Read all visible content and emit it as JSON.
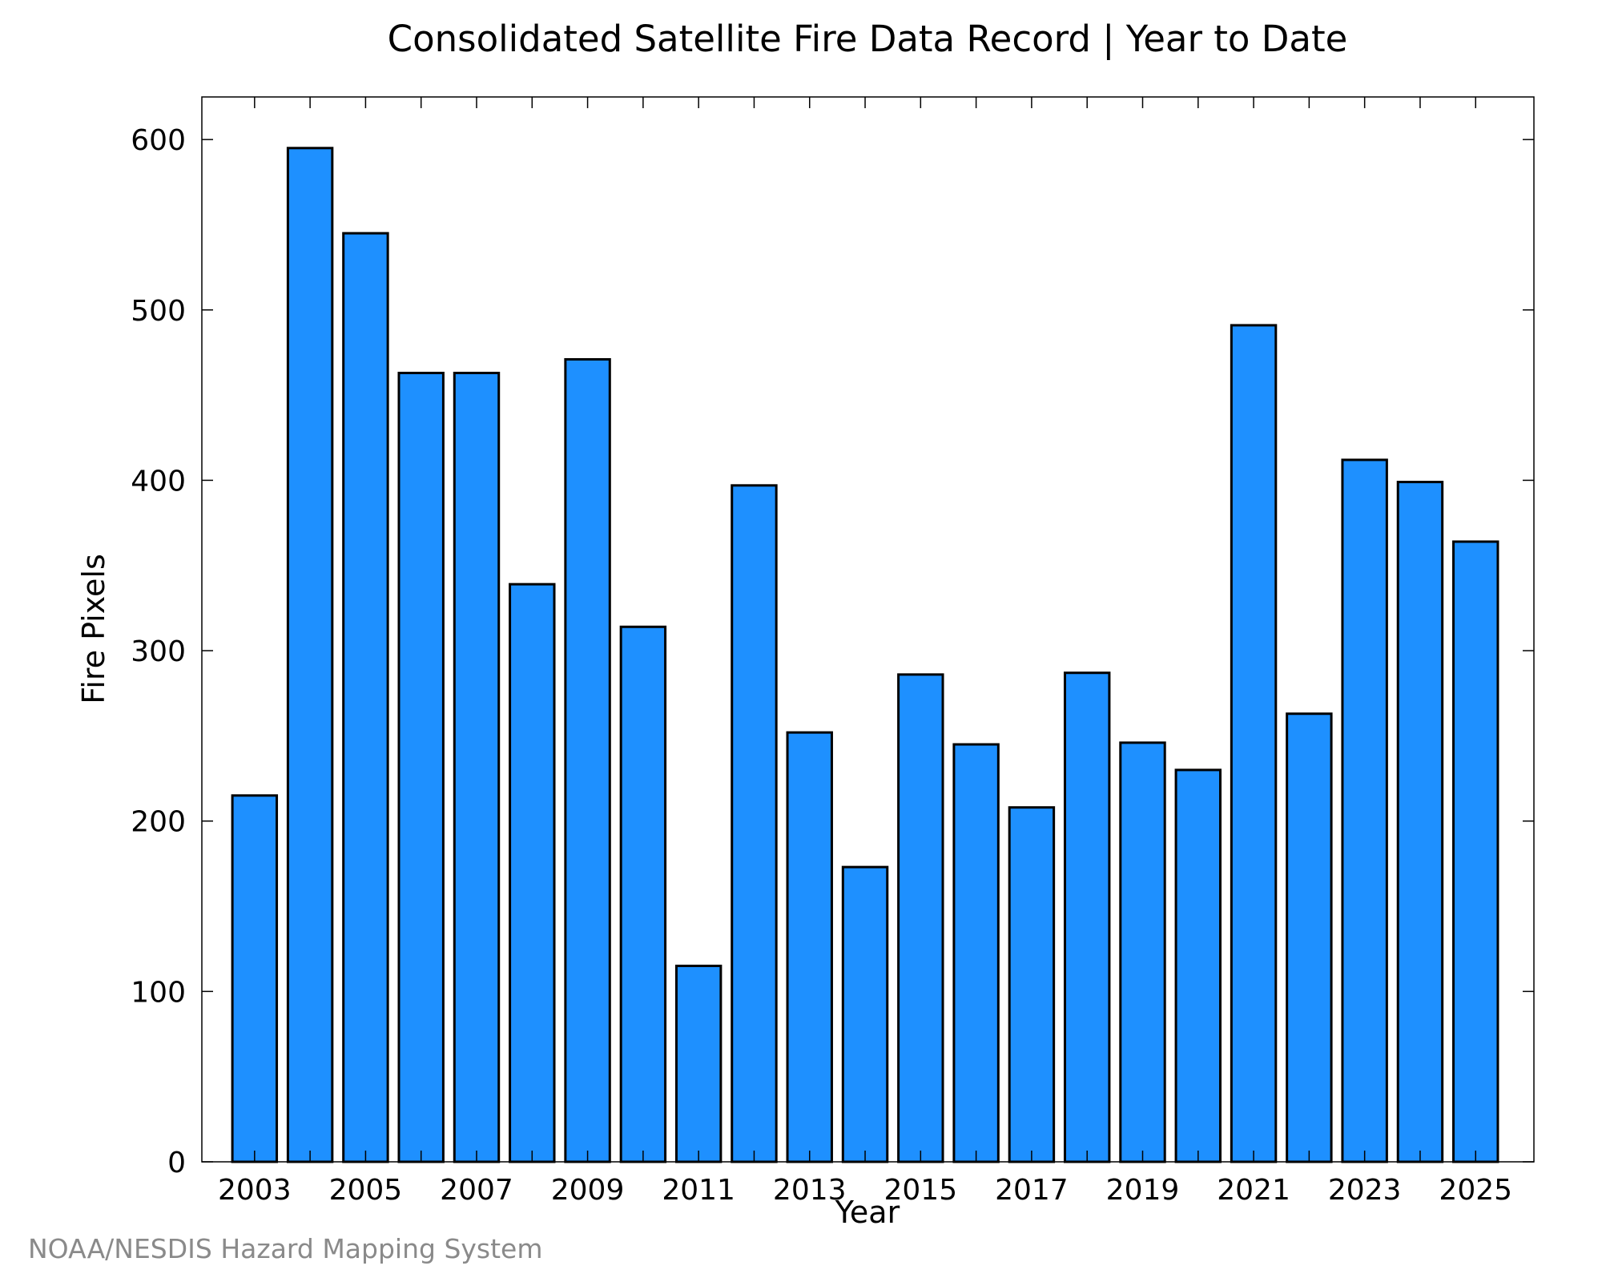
{
  "chart_data": {
    "type": "bar",
    "title": "Consolidated Satellite Fire Data Record | Year to Date",
    "xlabel": "Year",
    "ylabel": "Fire Pixels",
    "categories": [
      "2003",
      "2004",
      "2005",
      "2006",
      "2007",
      "2008",
      "2009",
      "2010",
      "2011",
      "2012",
      "2013",
      "2014",
      "2015",
      "2016",
      "2017",
      "2018",
      "2019",
      "2020",
      "2021",
      "2022",
      "2023",
      "2024",
      "2025"
    ],
    "x_tick_labels": [
      "2003",
      "2005",
      "2007",
      "2009",
      "2011",
      "2013",
      "2015",
      "2017",
      "2019",
      "2021",
      "2023",
      "2025"
    ],
    "values": [
      215,
      595,
      545,
      463,
      463,
      339,
      471,
      314,
      115,
      397,
      252,
      173,
      286,
      245,
      208,
      287,
      246,
      230,
      491,
      263,
      412,
      399,
      364
    ],
    "ylim": [
      0,
      625
    ],
    "y_ticks": [
      0,
      100,
      200,
      300,
      400,
      500,
      600
    ],
    "xlim": [
      2002.05,
      2026.05
    ],
    "bar_color": "#1E90FF",
    "grid": false,
    "legend": false
  },
  "footer": {
    "credit": "NOAA/NESDIS Hazard Mapping System"
  }
}
